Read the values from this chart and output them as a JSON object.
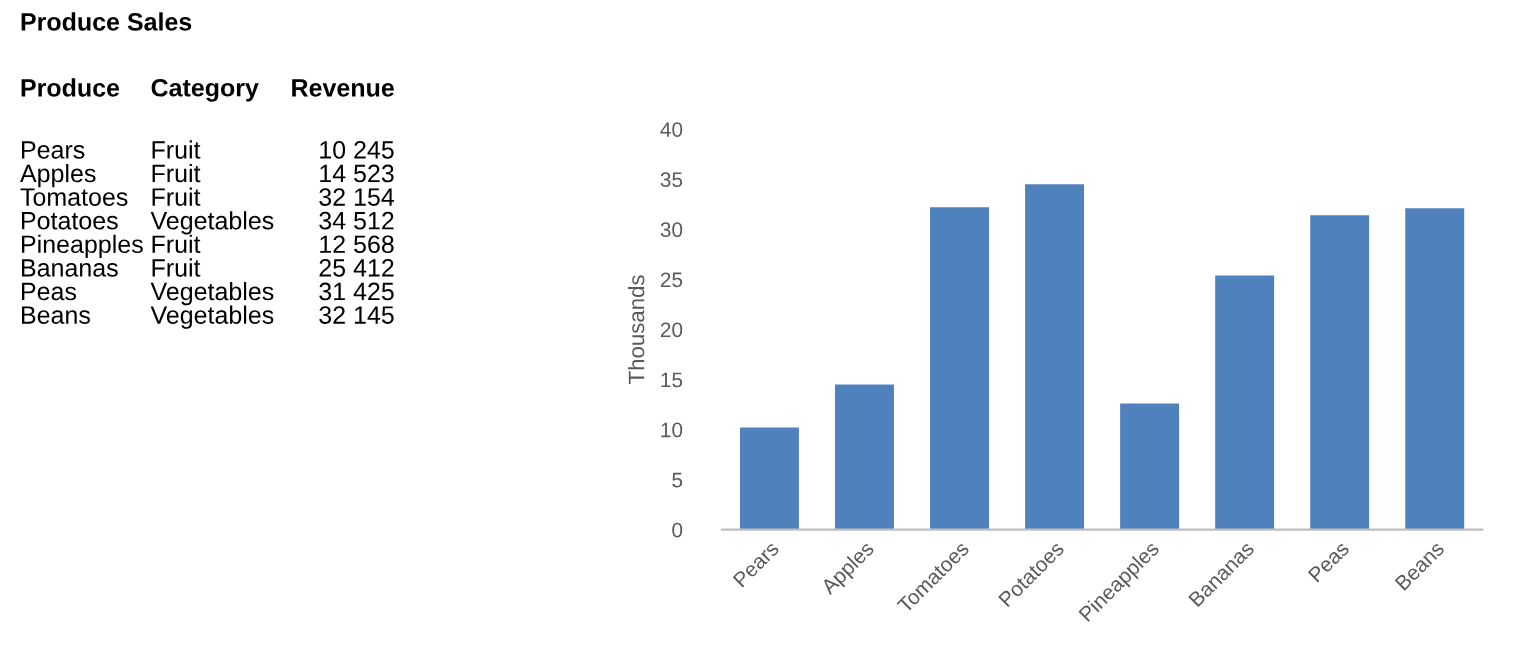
{
  "chart_data": [
    {
      "type": "other",
      "title": "Produce Sales",
      "annotations": [
        "Produce",
        "Category",
        "Revenue",
        "Pears",
        "Fruit",
        "10 245",
        "Apples",
        "Fruit",
        "14 523",
        "Tomatoes",
        "Fruit",
        "32 154",
        "Potatoes",
        "Vegetables",
        "34 512",
        "Pineapples",
        "Fruit",
        "12 568",
        "Bananas",
        "Fruit",
        "25 412",
        "Peas",
        "Vegetables",
        "31 425",
        "Beans",
        "Vegetables",
        "32 145"
      ]
    },
    {
      "type": "bar",
      "ylabel": "Thousands",
      "categories": [
        "Pears",
        "Apples",
        "Tomatoes",
        "Potatoes",
        "Pineapples",
        "Bananas",
        "Peas",
        "Beans"
      ],
      "values": [
        10.2,
        14.5,
        32.2,
        34.5,
        12.6,
        25.4,
        31.4,
        32.1
      ],
      "color": "#4f81bd",
      "ylim": [
        0,
        40
      ],
      "yticks": [
        0,
        5,
        10,
        15,
        20,
        25,
        30,
        35,
        40
      ]
    }
  ]
}
